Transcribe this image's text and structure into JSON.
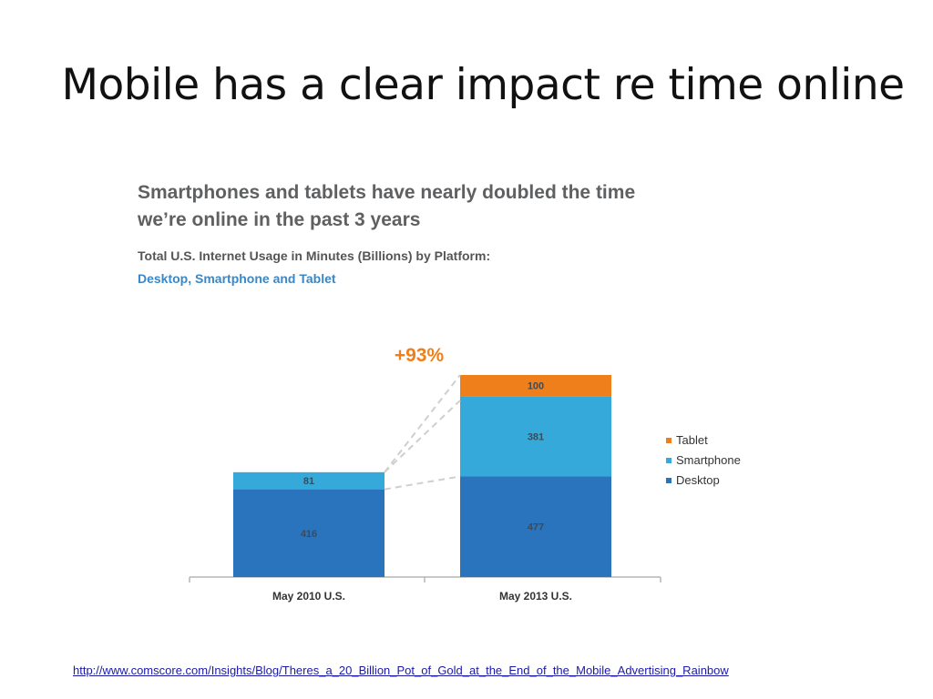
{
  "slide": {
    "title": "Mobile has a clear impact re time online",
    "source_url": "http://www.comscore.com/Insights/Blog/Theres_a_20_Billion_Pot_of_Gold_at_the_End_of_the_Mobile_Advertising_Rainbow"
  },
  "chart_heading": {
    "line1": "Smartphones and tablets have nearly doubled the time",
    "line2": "we’re online in the past 3 years"
  },
  "chart_data": {
    "type": "bar",
    "stacked": true,
    "subtitle_line1": "Total U.S. Internet Usage in Minutes (Billions) by Platform:",
    "subtitle_line2": "Desktop, Smartphone and Tablet",
    "categories": [
      "May 2010 U.S.",
      "May 2013 U.S."
    ],
    "series": [
      {
        "name": "Desktop",
        "values": [
          416,
          477
        ],
        "color": "#2a74bd"
      },
      {
        "name": "Smartphone",
        "values": [
          81,
          381
        ],
        "color": "#35aada"
      },
      {
        "name": "Tablet",
        "values": [
          0,
          100
        ],
        "color": "#ef7f1a"
      }
    ],
    "data_labels": [
      [
        "416",
        "81",
        ""
      ],
      [
        "477",
        "381",
        "100"
      ]
    ],
    "legend_order": [
      "Tablet",
      "Smartphone",
      "Desktop"
    ],
    "legend_position": "right",
    "annotation": {
      "text": "+93%",
      "color": "#ef7f1a"
    },
    "ylim": [
      0,
      958
    ],
    "grid": false
  }
}
